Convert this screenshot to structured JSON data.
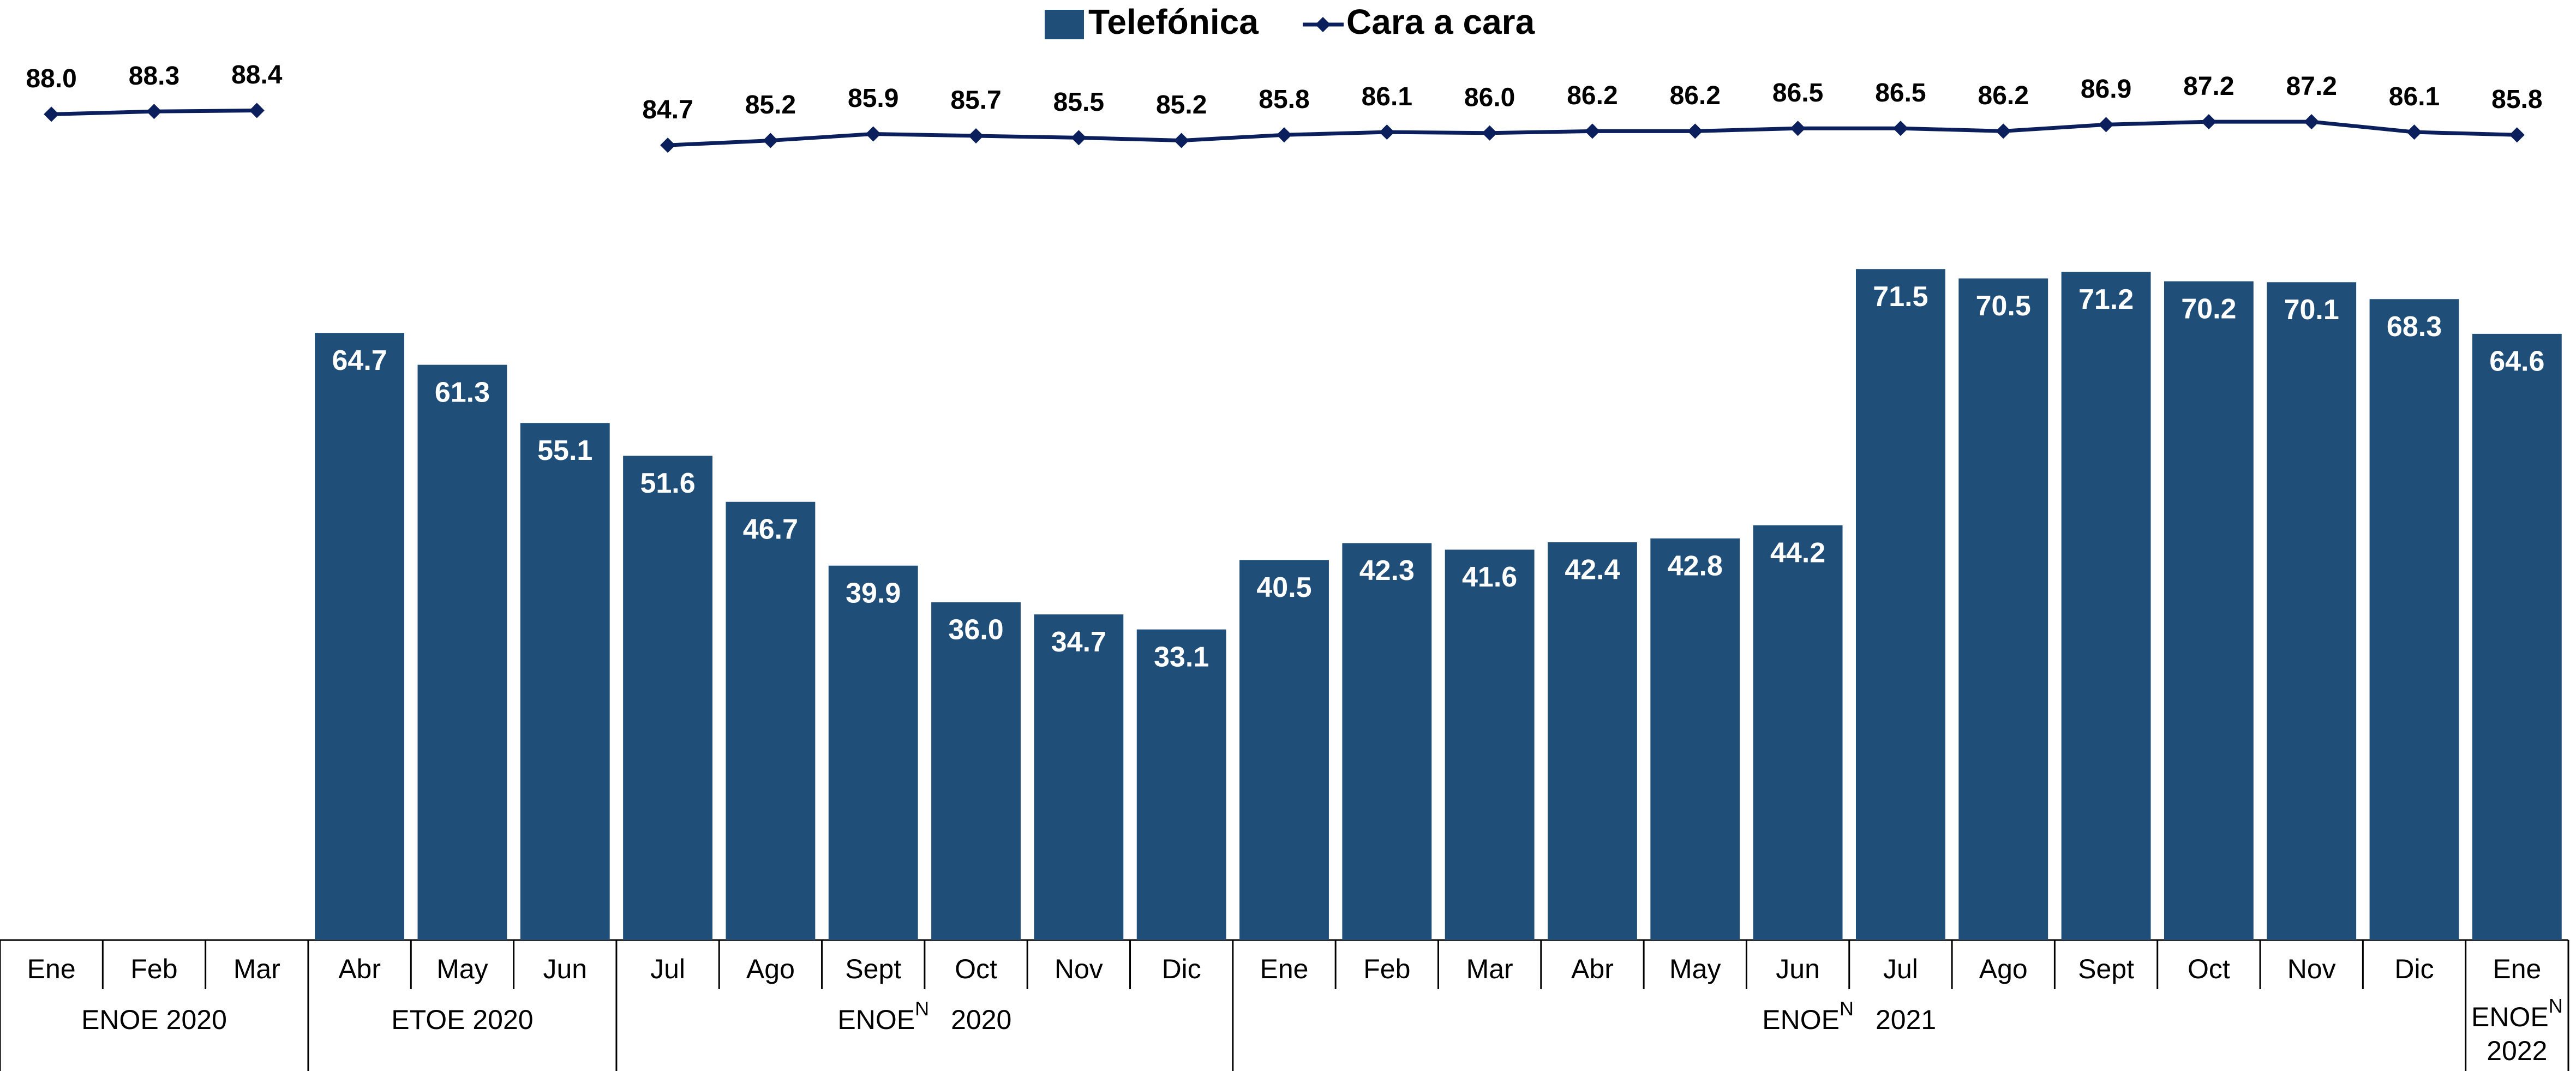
{
  "chart_data": {
    "type": "bar-line",
    "groups": [
      {
        "name": "ENOE 2020",
        "categories": [
          "Ene",
          "Feb",
          "Mar"
        ]
      },
      {
        "name": "ETOE 2020",
        "categories": [
          "Abr",
          "May",
          "Jun"
        ]
      },
      {
        "name": "ENOE",
        "superscript": "N",
        "year": "2020",
        "categories": [
          "Jul",
          "Ago",
          "Sept",
          "Oct",
          "Nov",
          "Dic"
        ]
      },
      {
        "name": "ENOE",
        "superscript": "N",
        "year": "2021",
        "categories": [
          "Ene",
          "Feb",
          "Mar",
          "Abr",
          "May",
          "Jun",
          "Jul",
          "Ago",
          "Sept",
          "Oct",
          "Nov",
          "Dic"
        ]
      },
      {
        "name": "ENOE",
        "superscript": "N",
        "year": "2022",
        "categories": [
          "Ene"
        ]
      }
    ],
    "ylim": [
      0,
      100
    ],
    "legend": "top",
    "series": [
      {
        "name": "Telefónica",
        "type": "bar",
        "color": "#1f4e79",
        "values": [
          null,
          null,
          null,
          64.7,
          61.3,
          55.1,
          51.6,
          46.7,
          39.9,
          36.0,
          34.7,
          33.1,
          40.5,
          42.3,
          41.6,
          42.4,
          42.8,
          44.2,
          71.5,
          70.5,
          71.2,
          70.2,
          70.1,
          68.3,
          64.6
        ],
        "value_labels": [
          null,
          null,
          null,
          "64.7",
          "61.3",
          "55.1",
          "51.6",
          "46.7",
          "39.9",
          "36.0",
          "34.7",
          "33.1",
          "40.5",
          "42.3",
          "41.6",
          "42.4",
          "42.8",
          "44.2",
          "71.5",
          "70.5",
          "71.2",
          "70.2",
          "70.1",
          "68.3",
          "64.6"
        ]
      },
      {
        "name": "Cara a cara",
        "type": "line",
        "color": "#0b1f5c",
        "values": [
          88.0,
          88.3,
          88.4,
          null,
          null,
          null,
          84.7,
          85.2,
          85.9,
          85.7,
          85.5,
          85.2,
          85.8,
          86.1,
          86.0,
          86.2,
          86.2,
          86.5,
          86.5,
          86.2,
          86.9,
          87.2,
          87.2,
          86.1,
          85.8
        ],
        "value_labels": [
          "88.0",
          "88.3",
          "88.4",
          null,
          null,
          null,
          "84.7",
          "85.2",
          "85.9",
          "85.7",
          "85.5",
          "85.2",
          "85.8",
          "86.1",
          "86.0",
          "86.2",
          "86.2",
          "86.5",
          "86.5",
          "86.2",
          "86.9",
          "87.2",
          "87.2",
          "86.1",
          "85.8"
        ]
      }
    ]
  }
}
